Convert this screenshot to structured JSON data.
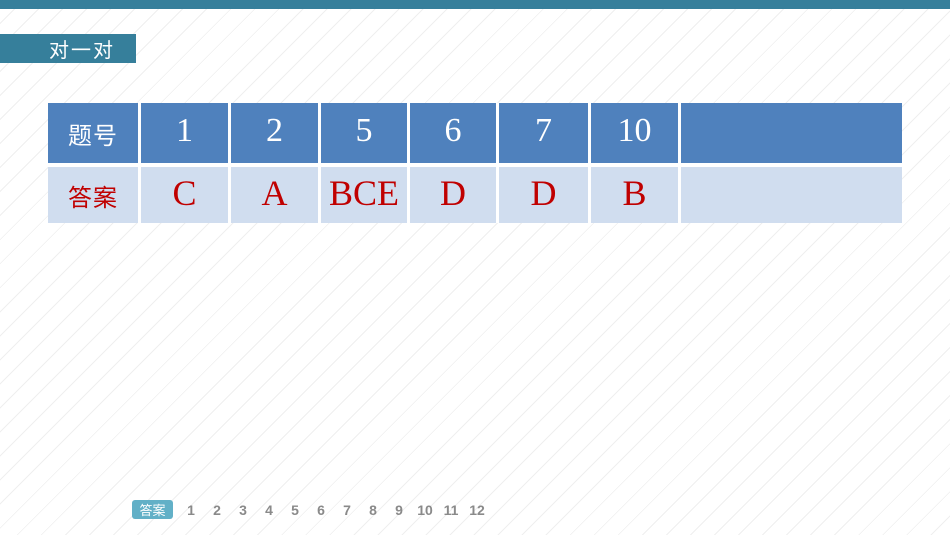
{
  "slide": {
    "accent_color": "#367f9b",
    "stripe_color": "#efefef"
  },
  "header_tab": {
    "label": "对一对"
  },
  "answer_table": {
    "header_label": "题号",
    "answer_label": "答案",
    "header_bg": "#4f81bd",
    "row_bg": "#d0ddef",
    "answer_color": "#c00000",
    "question_numbers": [
      "1",
      "2",
      "5",
      "6",
      "7",
      "10",
      ""
    ],
    "answers": [
      "C",
      "A",
      "BCE",
      "D",
      "D",
      "B",
      ""
    ]
  },
  "bottom_nav": {
    "badge_label": "答案",
    "badge_color": "#62b0c7",
    "numbers": [
      "1",
      "2",
      "3",
      "4",
      "5",
      "6",
      "7",
      "8",
      "9",
      "10",
      "11",
      "12"
    ]
  }
}
